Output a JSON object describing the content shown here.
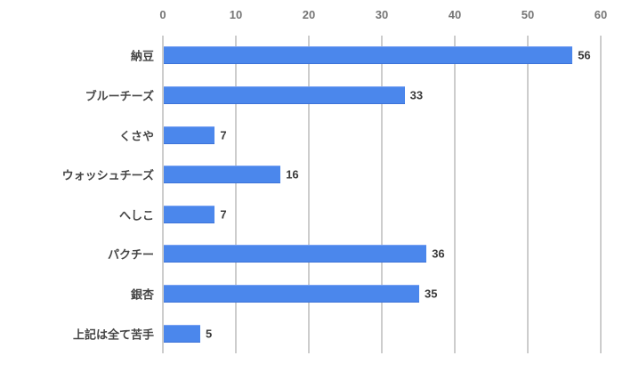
{
  "chart_data": {
    "type": "bar",
    "orientation": "horizontal",
    "title": "",
    "categories": [
      "納豆",
      "ブルーチーズ",
      "くさや",
      "ウォッシュチーズ",
      "へしこ",
      "パクチー",
      "銀杏",
      "上記は全て苦手"
    ],
    "values": [
      56,
      33,
      7,
      16,
      7,
      36,
      35,
      5
    ],
    "value_labels_shown": true,
    "x_ticks": [
      "0",
      "10",
      "20",
      "30",
      "40",
      "50",
      "60"
    ],
    "xlim": [
      0,
      60
    ],
    "xlabel": "",
    "ylabel": "",
    "legend": false,
    "grid": true,
    "axis_position": "top",
    "colors": {
      "bar": "#4b87ec",
      "grid_line": "#cdcdcd",
      "tick_label": "#757575",
      "category_label": "#464646",
      "value_label": "#3b3b3b",
      "background": "#ffffff"
    }
  }
}
